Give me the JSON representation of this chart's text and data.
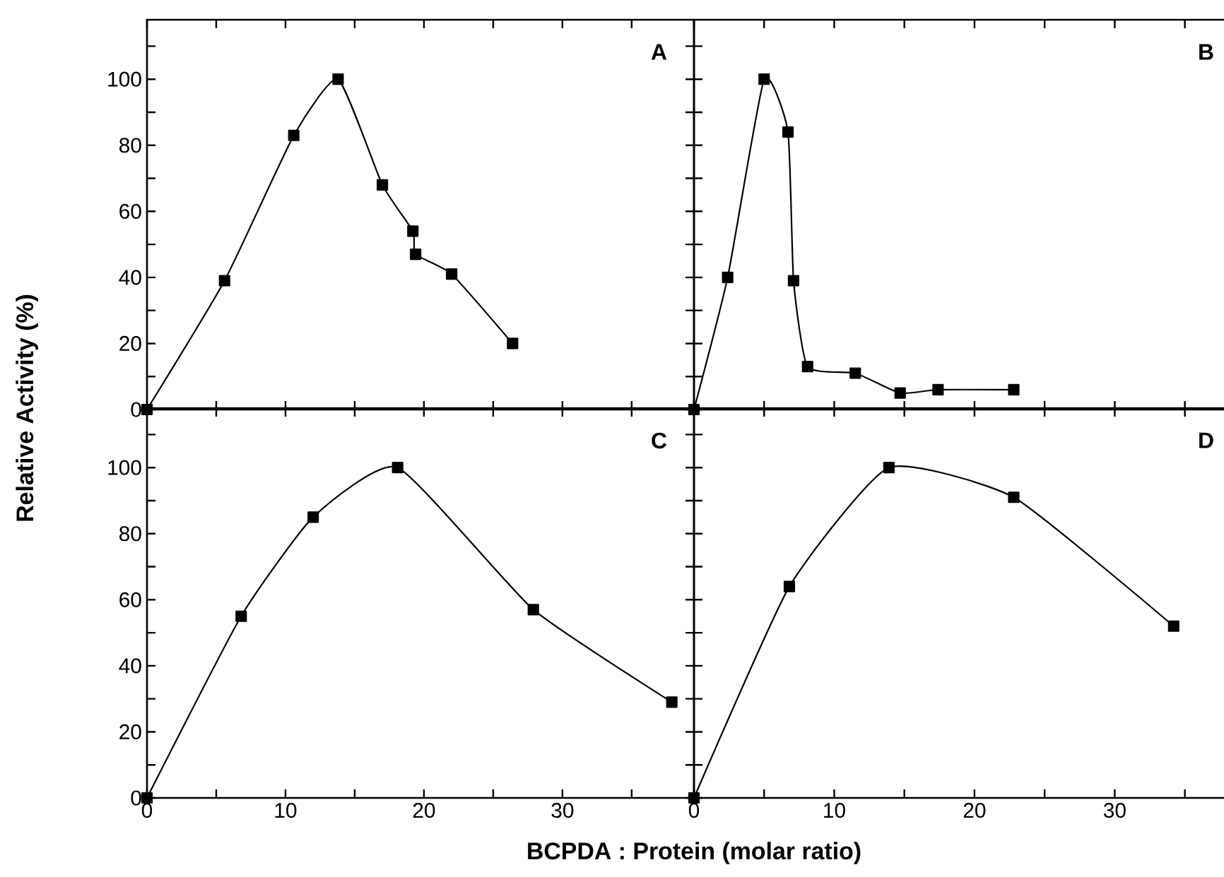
{
  "chart_data": [
    {
      "type": "line",
      "title": "A",
      "marker": "square",
      "color": "#000000",
      "tick_labels": "y",
      "x": [
        0,
        5.6,
        10.6,
        13.8,
        17.0,
        19.2,
        19.4,
        22.0,
        26.4
      ],
      "values": [
        0,
        39,
        83,
        100,
        68,
        54,
        47,
        41,
        20
      ],
      "xlim": [
        0,
        39.5
      ],
      "ylim": [
        0,
        118
      ],
      "xticks": [
        0,
        {
          "value": 5,
          "label": null
        },
        {
          "value": 10,
          "label": null
        },
        {
          "value": 15,
          "label": null
        },
        {
          "value": 20,
          "label": null
        },
        {
          "value": 25,
          "label": null
        },
        {
          "value": 30,
          "label": null
        },
        {
          "value": 35,
          "label": null
        }
      ],
      "yticks": [
        0,
        {
          "value": 10,
          "label": null
        },
        20,
        {
          "value": 30,
          "label": null
        },
        40,
        {
          "value": 50,
          "label": null
        },
        60,
        {
          "value": 70,
          "label": null
        },
        80,
        {
          "value": 90,
          "label": null
        },
        100,
        {
          "value": 110,
          "label": null
        }
      ]
    },
    {
      "type": "line",
      "title": "B",
      "marker": "square",
      "color": "#000000",
      "tick_labels": false,
      "x": [
        0,
        2.4,
        5.0,
        6.7,
        7.1,
        8.1,
        11.5,
        14.7,
        17.4,
        22.8
      ],
      "values": [
        0,
        40,
        100,
        84,
        39,
        13,
        11,
        5,
        6,
        6
      ],
      "xlim": [
        0,
        39
      ],
      "ylim": [
        0,
        118
      ],
      "xticks": [
        {
          "value": 0,
          "label": null
        },
        {
          "value": 5,
          "label": null
        },
        {
          "value": 10,
          "label": null
        },
        {
          "value": 15,
          "label": null
        },
        {
          "value": 20,
          "label": null
        },
        {
          "value": 25,
          "label": null
        },
        {
          "value": 30,
          "label": null
        },
        {
          "value": 35,
          "label": null
        }
      ],
      "yticks": [
        {
          "value": 0,
          "label": null
        },
        {
          "value": 10,
          "label": null
        },
        {
          "value": 20,
          "label": null
        },
        {
          "value": 30,
          "label": null
        },
        {
          "value": 40,
          "label": null
        },
        {
          "value": 50,
          "label": null
        },
        {
          "value": 60,
          "label": null
        },
        {
          "value": 70,
          "label": null
        },
        {
          "value": 80,
          "label": null
        },
        {
          "value": 90,
          "label": null
        },
        {
          "value": 100,
          "label": null
        },
        {
          "value": 110,
          "label": null
        }
      ]
    },
    {
      "type": "line",
      "title": "C",
      "marker": "square",
      "color": "#000000",
      "xlabel": "BCPDA : Protein  (molar ratio)",
      "ylabel": "Relative Activity (%)",
      "x": [
        0,
        6.8,
        12.0,
        18.1,
        27.9,
        37.9
      ],
      "values": [
        0,
        55,
        85,
        100,
        57,
        29
      ],
      "xlim": [
        0,
        39.5
      ],
      "ylim": [
        0,
        118
      ],
      "xticks": [
        0,
        {
          "value": 5,
          "label": null
        },
        10,
        {
          "value": 15,
          "label": null
        },
        20,
        {
          "value": 25,
          "label": null
        },
        30,
        {
          "value": 35,
          "label": null
        }
      ],
      "yticks": [
        0,
        {
          "value": 10,
          "label": null
        },
        20,
        {
          "value": 30,
          "label": null
        },
        40,
        {
          "value": 50,
          "label": null
        },
        60,
        {
          "value": 70,
          "label": null
        },
        80,
        {
          "value": 90,
          "label": null
        },
        100,
        {
          "value": 110,
          "label": null
        }
      ]
    },
    {
      "type": "line",
      "title": "D",
      "marker": "square",
      "color": "#000000",
      "tick_labels": "x",
      "x": [
        0,
        6.8,
        13.9,
        22.8,
        34.2
      ],
      "values": [
        0,
        64,
        100,
        91,
        52
      ],
      "xlim": [
        0,
        39
      ],
      "ylim": [
        0,
        118
      ],
      "xticks": [
        0,
        {
          "value": 5,
          "label": null
        },
        10,
        {
          "value": 15,
          "label": null
        },
        20,
        {
          "value": 25,
          "label": null
        },
        30,
        {
          "value": 35,
          "label": null
        }
      ],
      "yticks": [
        {
          "value": 0,
          "label": null
        },
        {
          "value": 10,
          "label": null
        },
        {
          "value": 20,
          "label": null
        },
        {
          "value": 30,
          "label": null
        },
        {
          "value": 40,
          "label": null
        },
        {
          "value": 50,
          "label": null
        },
        {
          "value": 60,
          "label": null
        },
        {
          "value": 70,
          "label": null
        },
        {
          "value": 80,
          "label": null
        },
        {
          "value": 90,
          "label": null
        },
        {
          "value": 100,
          "label": null
        },
        {
          "value": 110,
          "label": null
        }
      ]
    }
  ]
}
